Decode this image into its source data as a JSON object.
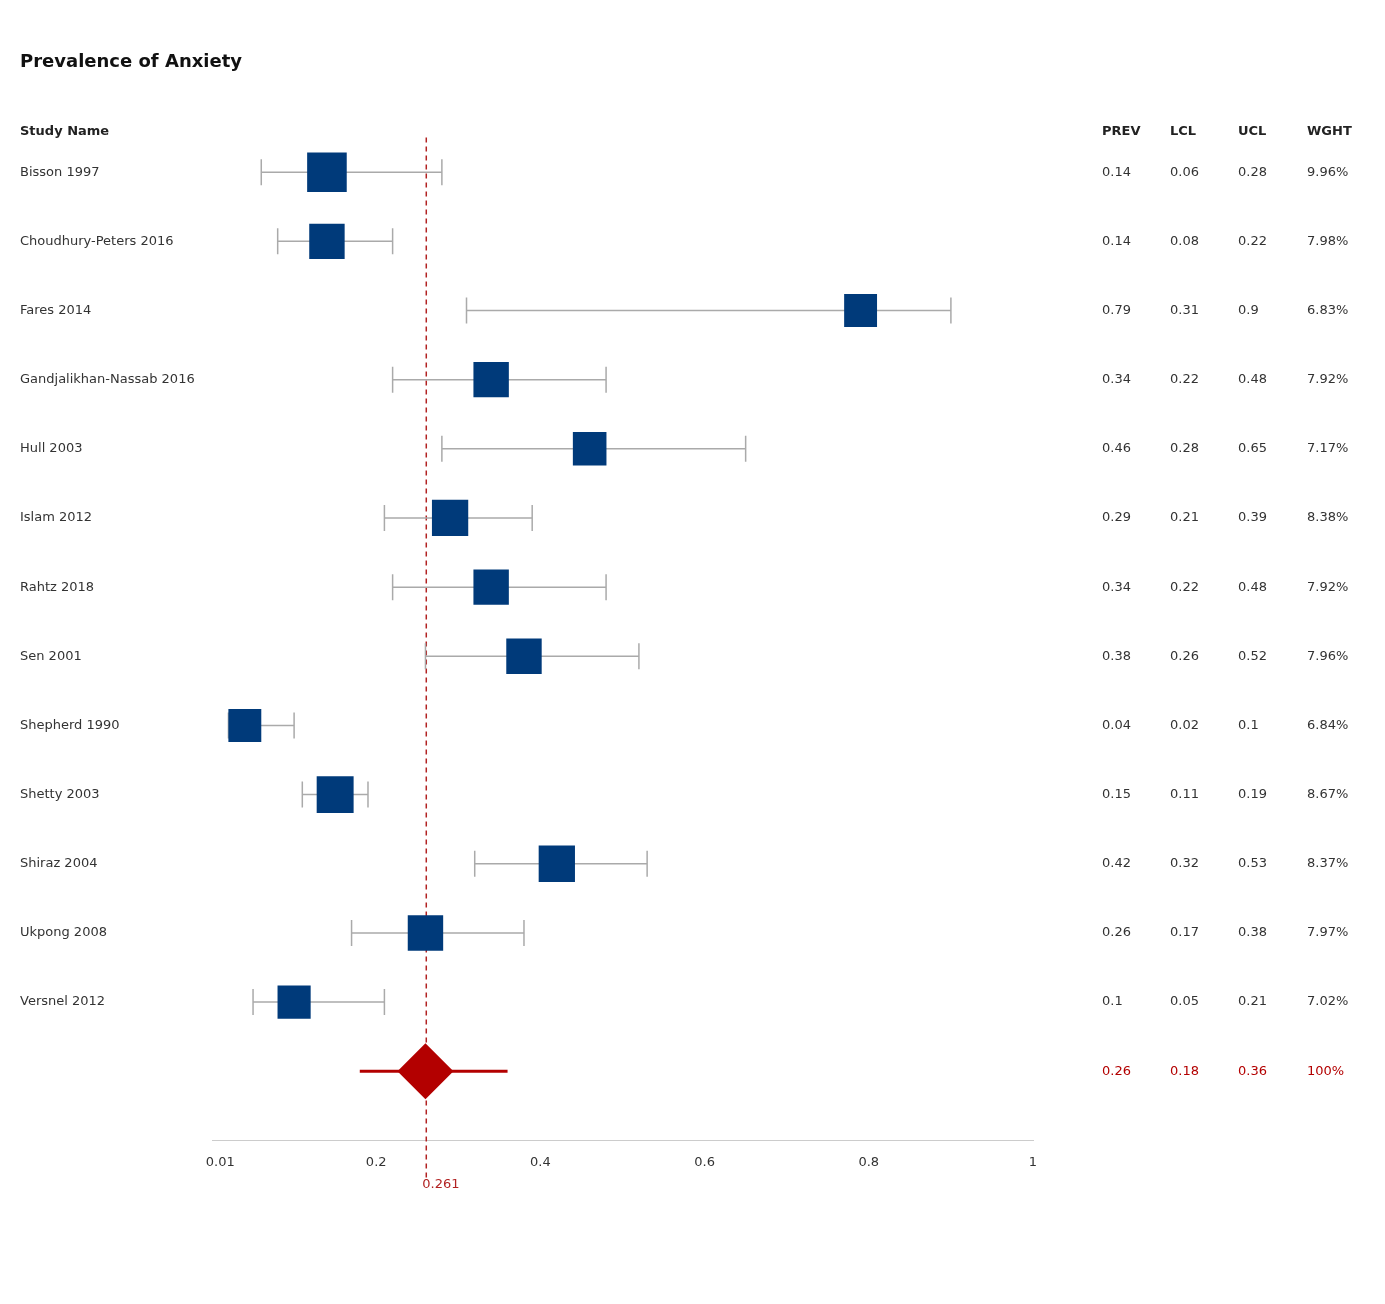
{
  "chart_data": {
    "type": "scatter",
    "orientation": "horizontal",
    "title": "Prevalence of Anxiety",
    "ylabel": "Study Name",
    "categories": [
      "Bisson 1997",
      "Choudhury-Peters 2016",
      "Fares 2014",
      "Gandjalikhan-Nassab 2016",
      "Hull 2003",
      "Islam 2012",
      "Rahtz 2018",
      "Sen 2001",
      "Shepherd 1990",
      "Shetty 2003",
      "Shiraz 2004",
      "Ukpong 2008",
      "Versnel 2012",
      null
    ],
    "series": [
      {
        "type": "scatter",
        "marker": "square",
        "color": "#003a7a",
        "values": [
          0.14,
          0.14,
          0.79,
          0.34,
          0.46,
          0.29,
          0.34,
          0.38,
          0.04,
          0.15,
          0.42,
          0.26,
          0.1,
          null
        ],
        "errors": [
          [
            0.06,
            0.28
          ],
          [
            0.08,
            0.22
          ],
          [
            0.31,
            0.9
          ],
          [
            0.22,
            0.48
          ],
          [
            0.28,
            0.65
          ],
          [
            0.21,
            0.39
          ],
          [
            0.22,
            0.48
          ],
          [
            0.26,
            0.52
          ],
          [
            0.02,
            0.1
          ],
          [
            0.11,
            0.19
          ],
          [
            0.32,
            0.53
          ],
          [
            0.17,
            0.38
          ],
          [
            0.05,
            0.21
          ],
          null
        ],
        "sizes": [
          1,
          0.8,
          0.69,
          0.8,
          0.72,
          0.84,
          0.8,
          0.8,
          0.69,
          0.87,
          0.84,
          0.8,
          0.7,
          null
        ]
      },
      {
        "type": "scatter",
        "marker": "diamond",
        "color": "#b30000",
        "values": [
          null,
          null,
          null,
          null,
          null,
          null,
          null,
          null,
          null,
          null,
          null,
          null,
          null,
          0.26
        ],
        "errors": [
          null,
          null,
          null,
          null,
          null,
          null,
          null,
          null,
          null,
          null,
          null,
          null,
          null,
          [
            0.18,
            0.36
          ]
        ]
      }
    ],
    "xlim": [
      0,
      1
    ],
    "xticks": [
      0.01,
      0.2,
      0.4,
      0.6,
      0.8,
      1
    ],
    "ref_lines": [
      {
        "axis": "x",
        "value": 0.261,
        "label": "0.261",
        "color": "#b22222",
        "line_style": "dashed"
      }
    ],
    "annotations": [
      "PREV",
      "LCL",
      "UCL",
      "WGHT",
      "0.14",
      "0.06",
      "0.28",
      "9.96%",
      "0.14",
      "0.08",
      "0.22",
      "7.98%",
      "0.79",
      "0.31",
      "0.9",
      "6.83%",
      "0.34",
      "0.22",
      "0.48",
      "7.92%",
      "0.46",
      "0.28",
      "0.65",
      "7.17%",
      "0.29",
      "0.21",
      "0.39",
      "8.38%",
      "0.34",
      "0.22",
      "0.48",
      "7.92%",
      "0.38",
      "0.26",
      "0.52",
      "7.96%",
      "0.04",
      "0.02",
      "0.1",
      "6.84%",
      "0.15",
      "0.11",
      "0.19",
      "8.67%",
      "0.42",
      "0.32",
      "0.53",
      "8.37%",
      "0.26",
      "0.17",
      "0.38",
      "7.97%",
      "0.1",
      "0.05",
      "0.21",
      "7.02%",
      "0.26",
      "0.18",
      "0.36",
      "100%"
    ],
    "grid": false,
    "legend": false
  }
}
